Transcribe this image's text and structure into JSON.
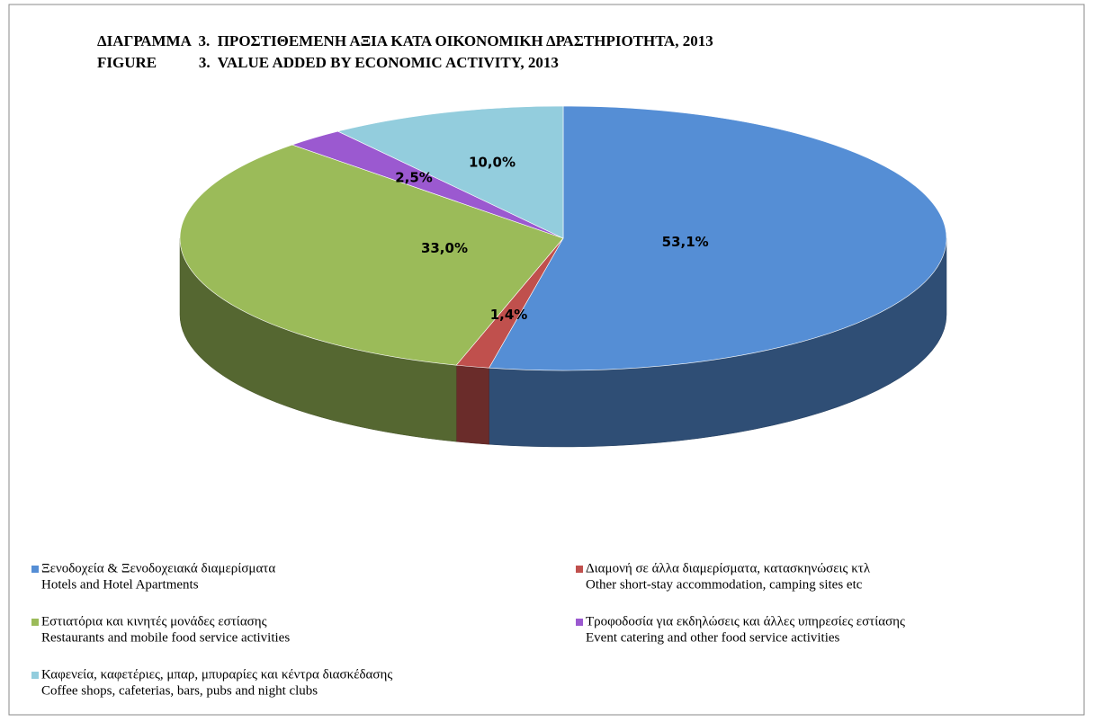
{
  "chart_data": {
    "type": "pie3d",
    "title": [
      "ΔΙΑΓΡΑΜΜΑ  3.  ΠΡΟΣΤΙΘΕΜΕΝΗ ΑΞΙΑ ΚΑΤΑ ΟΙΚΟΝΟΜΙΚΗ ΔΡΑΣΤΗΡΙΟΤΗΤΑ, 2013",
      "FIGURE           3.  VALUE ADDED BY ECONOMIC ACTIVITY, 2013"
    ],
    "categories": [
      [
        "Ξενοδοχεία & Ξενοδοχειακά διαμερίσματα",
        "Hotels and Hotel Apartments"
      ],
      [
        "Διαμονή σε άλλα διαμερίσματα, κατασκηνώσεις κτλ",
        "Other short-stay accommodation, camping sites etc"
      ],
      [
        "Εστιατόρια και κινητές μονάδες εστίασης",
        "Restaurants and mobile food service activities"
      ],
      [
        "Τροφοδοσία για εκδηλώσεις και άλλες υπηρεσίες εστίασης",
        "Event catering and other food service activities"
      ],
      [
        "Καφενεία, καφετέριες, μπαρ, μπυραρίες και κέντρα διασκέδασης",
        "Coffee shops, cafeterias, bars, pubs and night clubs"
      ]
    ],
    "values": [
      53.1,
      1.4,
      33.0,
      2.5,
      10.0
    ],
    "value_labels": [
      "53,1%",
      "1,4%",
      "33,0%",
      "2,5%",
      "10,0%"
    ],
    "colors": [
      "#558ed5",
      "#c0504d",
      "#9bbb59",
      "#9b59d0",
      "#93cddd"
    ]
  }
}
